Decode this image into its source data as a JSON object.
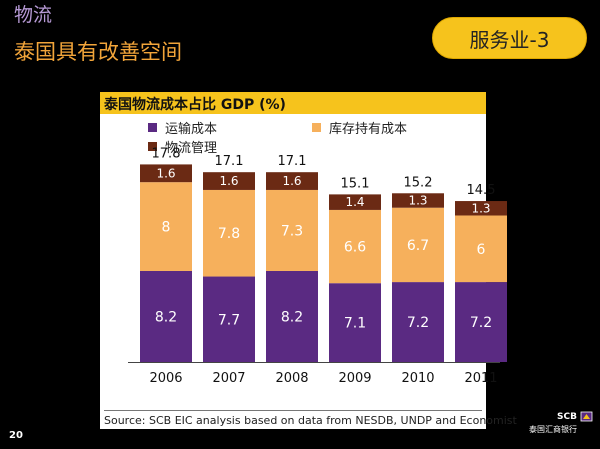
{
  "slide": {
    "title": "物流",
    "subtitle": "泰国具有改善空间",
    "tag": "服务业-3",
    "page_number": "20",
    "brand_name": "SCB",
    "brand_subtitle": "泰国汇商银行"
  },
  "chart_data": {
    "type": "bar",
    "stacked": true,
    "title": "泰国物流成本占比 GDP (%)",
    "categories": [
      "2006",
      "2007",
      "2008",
      "2009",
      "2010",
      "2011"
    ],
    "series": [
      {
        "name": "运输成本",
        "color": "#5a2a82",
        "values": [
          8.2,
          7.7,
          8.2,
          7.1,
          7.2,
          7.2
        ]
      },
      {
        "name": "库存持有成本",
        "color": "#f6b05c",
        "values": [
          8,
          7.8,
          7.3,
          6.6,
          6.7,
          6
        ]
      },
      {
        "name": "物流管理",
        "color": "#6b2a14",
        "values": [
          1.6,
          1.6,
          1.6,
          1.4,
          1.3,
          1.3
        ]
      }
    ],
    "totals": [
      "17.8",
      "17.1",
      "17.1",
      "15.1",
      "15.2",
      "14.5"
    ],
    "ylim": [
      0,
      20
    ],
    "legend_position": "top",
    "grid": false,
    "source": "Source:  SCB EIC analysis based on data from NESDB, UNDP and Economist"
  }
}
